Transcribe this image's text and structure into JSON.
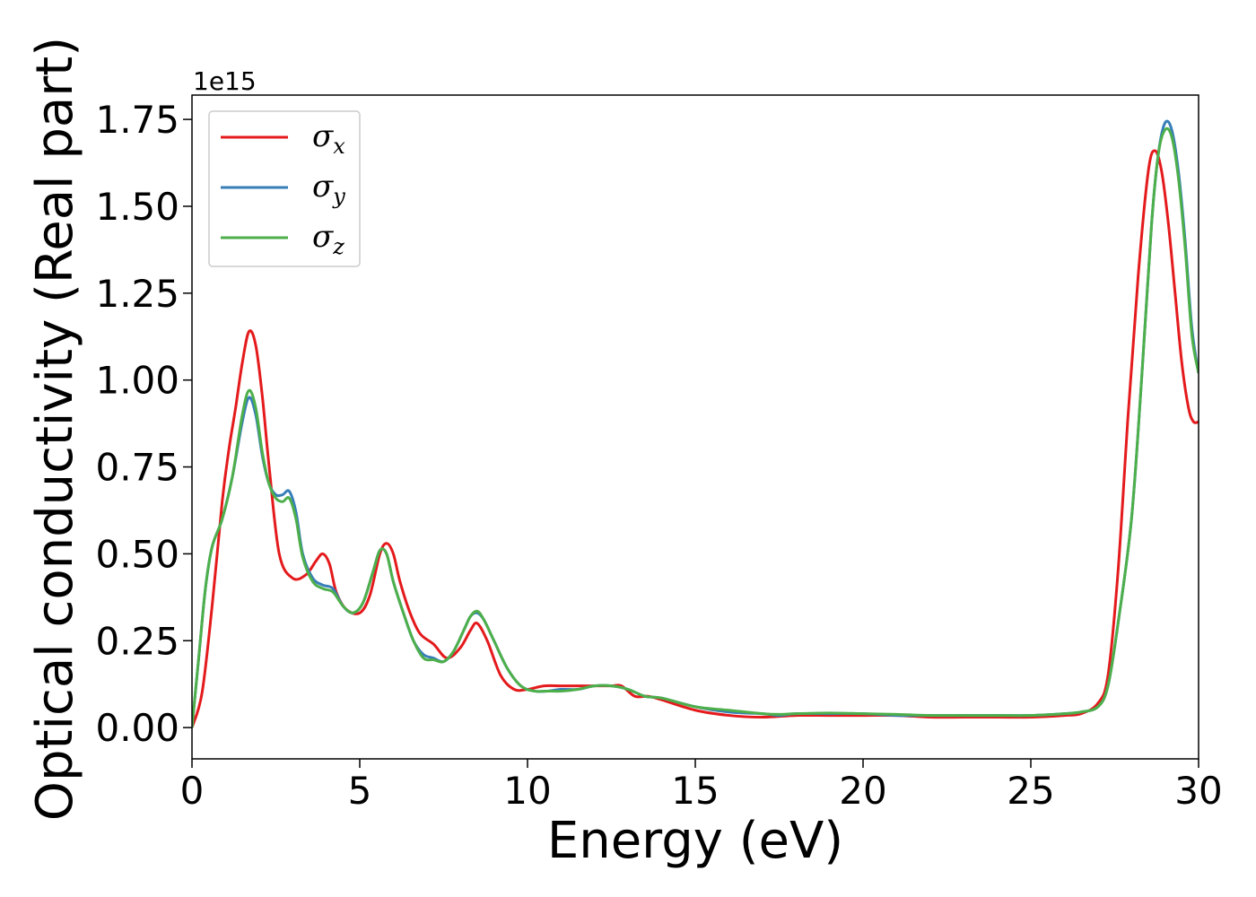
{
  "chart_data": {
    "type": "line",
    "title": "",
    "xlabel": "Energy (eV)",
    "ylabel": "Optical conductivity (Real part)",
    "y_offset_text": "1e15",
    "xlim": [
      0,
      30
    ],
    "ylim": [
      -0.09,
      1.82
    ],
    "x_ticks": [
      0,
      5,
      10,
      15,
      20,
      25,
      30
    ],
    "x_tick_labels": [
      "0",
      "5",
      "10",
      "15",
      "20",
      "25",
      "30"
    ],
    "y_ticks": [
      0.0,
      0.25,
      0.5,
      0.75,
      1.0,
      1.25,
      1.5,
      1.75
    ],
    "y_tick_labels": [
      "0.00",
      "0.25",
      "0.50",
      "0.75",
      "1.00",
      "1.25",
      "1.50",
      "1.75"
    ],
    "grid": false,
    "legend_position": "top-left",
    "series": [
      {
        "name": "σ",
        "subscript": "x",
        "color": "#e41a1c",
        "x": [
          0,
          0.3,
          0.6,
          0.9,
          1.1,
          1.3,
          1.5,
          1.7,
          1.9,
          2.1,
          2.3,
          2.6,
          3.0,
          3.4,
          3.7,
          3.9,
          4.1,
          4.3,
          4.6,
          5.0,
          5.3,
          5.6,
          5.8,
          6.0,
          6.2,
          6.5,
          6.8,
          7.2,
          7.6,
          8.0,
          8.3,
          8.5,
          8.8,
          9.2,
          9.6,
          10.0,
          10.5,
          11.0,
          11.5,
          12.0,
          12.5,
          12.8,
          13.2,
          13.6,
          14.0,
          15.0,
          16.0,
          17.0,
          18.0,
          19.0,
          20.0,
          21.0,
          22.0,
          23.0,
          24.0,
          25.0,
          26.0,
          26.5,
          27.0,
          27.3,
          27.6,
          27.9,
          28.2,
          28.5,
          28.7,
          28.9,
          29.1,
          29.3,
          29.5,
          29.7,
          29.85,
          30.0
        ],
        "y": [
          0.0,
          0.1,
          0.35,
          0.65,
          0.8,
          0.92,
          1.05,
          1.14,
          1.1,
          0.95,
          0.75,
          0.5,
          0.43,
          0.44,
          0.48,
          0.5,
          0.47,
          0.39,
          0.34,
          0.33,
          0.38,
          0.5,
          0.53,
          0.5,
          0.42,
          0.33,
          0.27,
          0.24,
          0.2,
          0.23,
          0.28,
          0.3,
          0.25,
          0.15,
          0.11,
          0.11,
          0.12,
          0.12,
          0.12,
          0.12,
          0.12,
          0.12,
          0.09,
          0.09,
          0.08,
          0.05,
          0.035,
          0.03,
          0.035,
          0.035,
          0.035,
          0.035,
          0.03,
          0.03,
          0.03,
          0.03,
          0.035,
          0.04,
          0.07,
          0.15,
          0.45,
          0.9,
          1.3,
          1.6,
          1.66,
          1.6,
          1.45,
          1.25,
          1.05,
          0.92,
          0.88,
          0.88
        ]
      },
      {
        "name": "σ",
        "subscript": "y",
        "color": "#377eb8",
        "x": [
          0,
          0.2,
          0.4,
          0.6,
          0.9,
          1.2,
          1.5,
          1.7,
          1.9,
          2.1,
          2.3,
          2.5,
          2.7,
          2.9,
          3.1,
          3.3,
          3.6,
          3.9,
          4.2,
          4.5,
          4.8,
          5.1,
          5.4,
          5.6,
          5.8,
          6.0,
          6.3,
          6.6,
          6.9,
          7.2,
          7.5,
          7.8,
          8.1,
          8.3,
          8.5,
          8.7,
          9.0,
          9.4,
          9.8,
          10.2,
          10.6,
          11.0,
          11.5,
          12.0,
          12.5,
          13.0,
          13.5,
          14.0,
          15.0,
          16.0,
          17.0,
          17.5,
          18.0,
          19.0,
          20.0,
          21.0,
          22.0,
          23.0,
          24.0,
          25.0,
          26.0,
          26.5,
          27.0,
          27.3,
          27.6,
          28.0,
          28.3,
          28.6,
          28.8,
          29.0,
          29.2,
          29.4,
          29.6,
          29.8,
          30.0
        ],
        "y": [
          0.0,
          0.2,
          0.4,
          0.52,
          0.6,
          0.72,
          0.88,
          0.95,
          0.9,
          0.78,
          0.7,
          0.67,
          0.67,
          0.68,
          0.62,
          0.5,
          0.43,
          0.41,
          0.4,
          0.35,
          0.33,
          0.36,
          0.45,
          0.51,
          0.5,
          0.42,
          0.33,
          0.25,
          0.21,
          0.2,
          0.19,
          0.22,
          0.28,
          0.32,
          0.33,
          0.31,
          0.25,
          0.17,
          0.12,
          0.105,
          0.105,
          0.11,
          0.11,
          0.12,
          0.12,
          0.11,
          0.09,
          0.085,
          0.06,
          0.045,
          0.04,
          0.035,
          0.04,
          0.04,
          0.04,
          0.035,
          0.035,
          0.035,
          0.035,
          0.035,
          0.04,
          0.045,
          0.06,
          0.12,
          0.3,
          0.6,
          1.0,
          1.45,
          1.65,
          1.74,
          1.72,
          1.6,
          1.4,
          1.15,
          1.02
        ]
      },
      {
        "name": "σ",
        "subscript": "z",
        "color": "#4daf4a",
        "x": [
          0,
          0.2,
          0.4,
          0.6,
          0.9,
          1.2,
          1.5,
          1.7,
          1.9,
          2.1,
          2.3,
          2.5,
          2.7,
          2.9,
          3.1,
          3.3,
          3.6,
          3.9,
          4.2,
          4.5,
          4.8,
          5.1,
          5.4,
          5.6,
          5.8,
          6.0,
          6.3,
          6.6,
          6.9,
          7.2,
          7.5,
          7.8,
          8.1,
          8.3,
          8.5,
          8.7,
          9.0,
          9.4,
          9.8,
          10.2,
          10.6,
          11.0,
          11.5,
          12.0,
          12.5,
          13.0,
          13.5,
          14.0,
          15.0,
          16.0,
          17.0,
          17.5,
          18.0,
          19.0,
          20.0,
          21.0,
          22.0,
          23.0,
          24.0,
          25.0,
          26.0,
          26.5,
          27.0,
          27.3,
          27.6,
          28.0,
          28.3,
          28.6,
          28.8,
          29.0,
          29.2,
          29.4,
          29.6,
          29.8,
          30.0
        ],
        "y": [
          0.0,
          0.2,
          0.4,
          0.52,
          0.6,
          0.72,
          0.9,
          0.97,
          0.92,
          0.79,
          0.7,
          0.66,
          0.65,
          0.66,
          0.6,
          0.49,
          0.42,
          0.4,
          0.39,
          0.35,
          0.33,
          0.36,
          0.45,
          0.51,
          0.5,
          0.42,
          0.33,
          0.25,
          0.2,
          0.195,
          0.19,
          0.22,
          0.28,
          0.32,
          0.335,
          0.31,
          0.25,
          0.17,
          0.12,
          0.105,
          0.105,
          0.105,
          0.11,
          0.12,
          0.12,
          0.11,
          0.09,
          0.085,
          0.06,
          0.05,
          0.04,
          0.038,
          0.04,
          0.042,
          0.04,
          0.038,
          0.035,
          0.035,
          0.035,
          0.035,
          0.04,
          0.045,
          0.06,
          0.12,
          0.3,
          0.6,
          1.0,
          1.45,
          1.65,
          1.72,
          1.7,
          1.58,
          1.38,
          1.13,
          1.02
        ]
      }
    ]
  }
}
